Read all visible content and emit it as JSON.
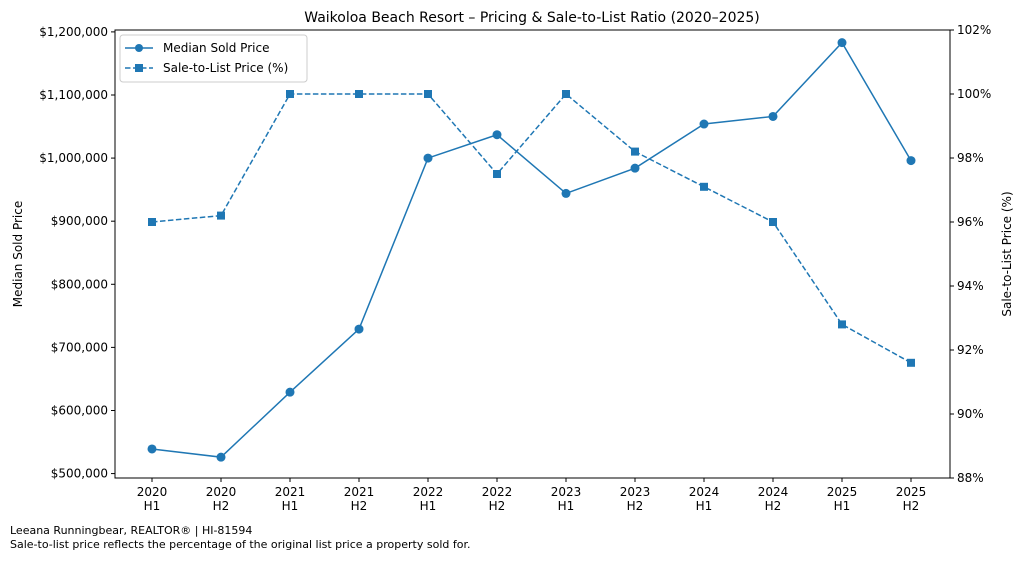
{
  "chart_data": {
    "type": "line",
    "title": "Waikoloa Beach Resort – Pricing & Sale-to-List Ratio (2020–2025)",
    "categories": [
      "2020\nH1",
      "2020\nH2",
      "2021\nH1",
      "2021\nH2",
      "2022\nH1",
      "2022\nH2",
      "2023\nH1",
      "2023\nH2",
      "2024\nH1",
      "2024\nH2",
      "2025\nH1",
      "2025\nH2"
    ],
    "category_labels": [
      [
        "2020",
        "H1"
      ],
      [
        "2020",
        "H2"
      ],
      [
        "2021",
        "H1"
      ],
      [
        "2021",
        "H2"
      ],
      [
        "2022",
        "H1"
      ],
      [
        "2022",
        "H2"
      ],
      [
        "2023",
        "H1"
      ],
      [
        "2023",
        "H2"
      ],
      [
        "2024",
        "H1"
      ],
      [
        "2024",
        "H2"
      ],
      [
        "2025",
        "H1"
      ],
      [
        "2025",
        "H2"
      ]
    ],
    "ylabel": "Median Sold Price",
    "y2label": "Sale-to-List Price (%)",
    "yticks": [
      "$500,000",
      "$600,000",
      "$700,000",
      "$800,000",
      "$900,000",
      "$1,000,000",
      "$1,100,000",
      "$1,200,000"
    ],
    "ytick_values": [
      500000,
      600000,
      700000,
      800000,
      900000,
      1000000,
      1100000,
      1200000
    ],
    "y2ticks": [
      "88%",
      "90%",
      "92%",
      "94%",
      "96%",
      "98%",
      "100%",
      "102%"
    ],
    "y2tick_values": [
      88,
      90,
      92,
      94,
      96,
      98,
      100,
      102
    ],
    "ylim": [
      493000,
      1203000
    ],
    "y2lim": [
      88,
      102
    ],
    "grid": false,
    "legend_position": "top-left",
    "series": [
      {
        "name": "Median Sold Price",
        "axis": "left",
        "marker": "circle",
        "linestyle": "solid",
        "color": "#1f77b4",
        "values": [
          539000,
          526000,
          629000,
          729000,
          1000000,
          1037000,
          944000,
          984000,
          1054000,
          1066000,
          1183000,
          996000
        ]
      },
      {
        "name": "Sale-to-List Price (%)",
        "axis": "right",
        "marker": "square",
        "linestyle": "dashed",
        "color": "#1f77b4",
        "values": [
          96.0,
          96.2,
          100.0,
          100.0,
          100.0,
          97.5,
          100.0,
          98.2,
          97.1,
          96.0,
          92.8,
          91.6
        ]
      }
    ]
  },
  "footer": {
    "line1": "Leeana Runningbear, REALTOR® | HI-81594",
    "line2": "Sale-to-list price reflects the percentage of the original list price a property sold for."
  }
}
